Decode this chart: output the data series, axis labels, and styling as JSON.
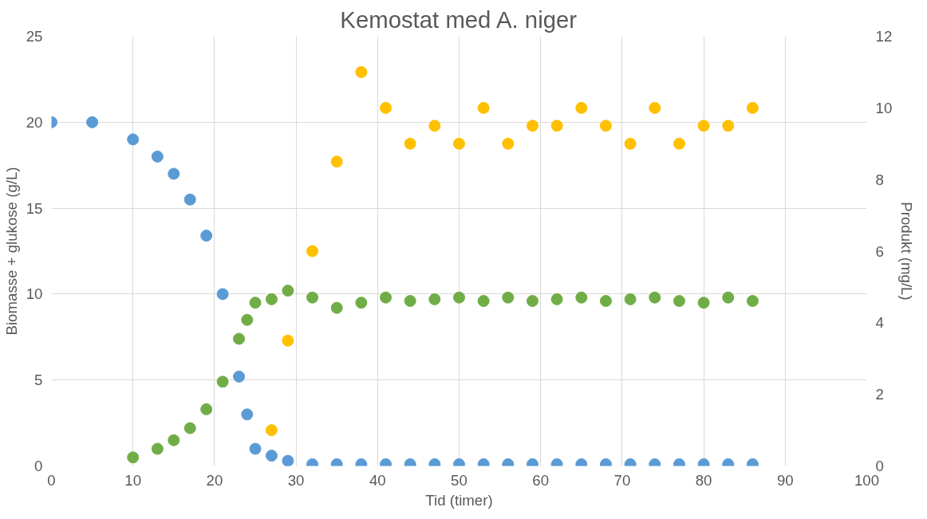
{
  "chart_data": {
    "type": "scatter",
    "title": "Kemostat med A. niger",
    "xlabel": "Tid (timer)",
    "ylabel": "Biomasse + glukose (g/L)",
    "y2label": "Produkt (mg/L)",
    "xlim": [
      0,
      100
    ],
    "xticks": [
      0,
      10,
      20,
      30,
      40,
      50,
      60,
      70,
      80,
      90,
      100
    ],
    "ylim": [
      0,
      25
    ],
    "yticks": [
      0,
      5,
      10,
      15,
      20,
      25
    ],
    "y2lim": [
      0,
      12
    ],
    "y2ticks": [
      0,
      2,
      4,
      6,
      8,
      10,
      12
    ],
    "grid": true,
    "marker": "circle",
    "series": [
      {
        "color": "#5b9bd5",
        "x": [
          0,
          5,
          10,
          13,
          15,
          17,
          19,
          21,
          23,
          24,
          25,
          27,
          29,
          32,
          35,
          38,
          41,
          44,
          47,
          50,
          53,
          56,
          59,
          62,
          65,
          68,
          71,
          74,
          77,
          80,
          83,
          86
        ],
        "values": [
          20,
          20,
          19,
          18,
          17,
          15.5,
          13.4,
          10,
          5.2,
          3,
          1,
          0.6,
          0.3,
          0.1,
          0.1,
          0.1,
          0.1,
          0.1,
          0.1,
          0.1,
          0.1,
          0.1,
          0.1,
          0.1,
          0.1,
          0.1,
          0.1,
          0.1,
          0.1,
          0.1,
          0.1,
          0.1
        ]
      },
      {
        "color": "#70ad47",
        "x": [
          10,
          13,
          15,
          17,
          19,
          21,
          23,
          24,
          25,
          27,
          29,
          32,
          35,
          38,
          41,
          44,
          47,
          50,
          53,
          56,
          59,
          62,
          65,
          68,
          71,
          74,
          77,
          80,
          83,
          86
        ],
        "values": [
          0.5,
          1,
          1.5,
          2.2,
          3.3,
          4.9,
          7.4,
          8.5,
          9.5,
          9.7,
          10.2,
          9.8,
          9.2,
          9.5,
          9.8,
          9.6,
          9.7,
          9.8,
          9.6,
          9.8,
          9.6,
          9.7,
          9.8,
          9.6,
          9.7,
          9.8,
          9.6,
          9.5,
          9.8,
          9.6
        ]
      },
      {
        "color": "#ffc000",
        "axis": "y2",
        "x": [
          27,
          29,
          32,
          35,
          38,
          41,
          44,
          47,
          50,
          53,
          56,
          59,
          62,
          65,
          68,
          71,
          74,
          77,
          80,
          83,
          86
        ],
        "values": [
          1,
          3.5,
          6,
          8.5,
          11,
          10,
          9,
          9.5,
          9,
          10,
          9,
          9.5,
          9.5,
          10,
          9.5,
          9,
          10,
          9,
          9.5,
          9.5,
          10
        ]
      }
    ]
  }
}
